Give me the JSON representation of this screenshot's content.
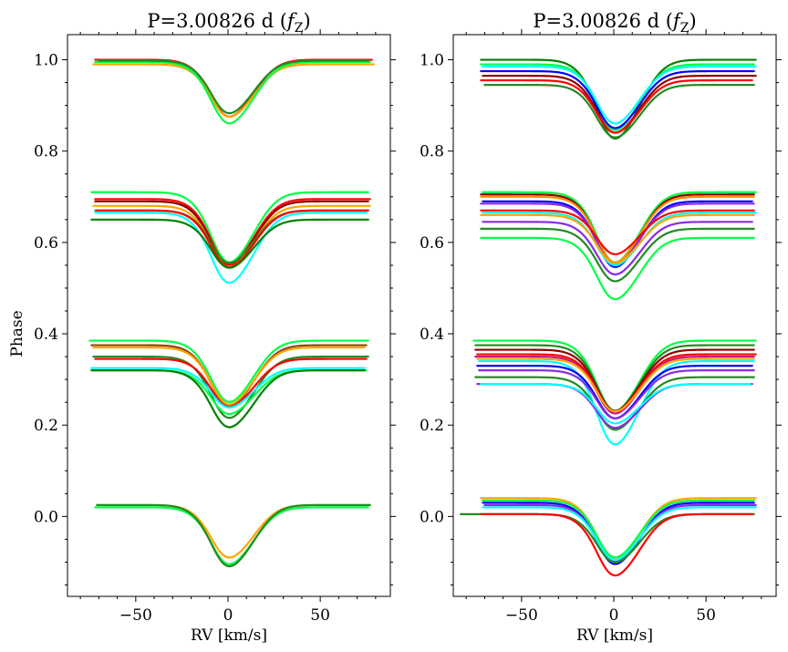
{
  "chart_data": [
    {
      "type": "line",
      "title": "P=3.00826 d (",
      "title_symbol": "f",
      "title_subscript": "Z",
      "title_close": ")",
      "xlabel": "RV [km/s]",
      "ylabel": "Phase",
      "xlim": [
        -87,
        88
      ],
      "ylim": [
        -0.175,
        1.055
      ],
      "xticks": [
        -50,
        0,
        50
      ],
      "xtick_labels": [
        "−50",
        "0",
        "50"
      ],
      "yticks": [
        0.0,
        0.2,
        0.4,
        0.6,
        0.8,
        1.0
      ],
      "ytick_labels": [
        "0.0",
        "0.2",
        "0.4",
        "0.6",
        "0.8",
        "1.0"
      ],
      "line_profile_model": {
        "center_kms": 3,
        "width_kms": 12
      },
      "series": [
        {
          "color": "#ff0000",
          "phase": 1.0,
          "depth": 0.13,
          "xmin": -72,
          "xmax": 78
        },
        {
          "color": "#ffa500",
          "phase": 0.99,
          "depth": 0.12,
          "xmin": -73,
          "xmax": 79
        },
        {
          "color": "#00ff44",
          "phase": 0.995,
          "depth": 0.14,
          "xmin": -72,
          "xmax": 77
        },
        {
          "color": "#228b22",
          "phase": 0.998,
          "depth": 0.12,
          "xmin": -70,
          "xmax": 76
        },
        {
          "color": "#00ff44",
          "phase": 0.71,
          "depth": 0.16,
          "xmin": -74,
          "xmax": 76
        },
        {
          "color": "#ff0000",
          "phase": 0.695,
          "depth": 0.15,
          "xmin": -72,
          "xmax": 77
        },
        {
          "color": "#8b0000",
          "phase": 0.69,
          "depth": 0.15,
          "xmin": -72,
          "xmax": 76
        },
        {
          "color": "#ffa500",
          "phase": 0.68,
          "depth": 0.14,
          "xmin": -73,
          "xmax": 77
        },
        {
          "color": "#228b22",
          "phase": 0.67,
          "depth": 0.12,
          "xmin": -72,
          "xmax": 76
        },
        {
          "color": "#00ffff",
          "phase": 0.665,
          "depth": 0.16,
          "xmin": -72,
          "xmax": 75
        },
        {
          "color": "#ff0000",
          "phase": 0.67,
          "depth": 0.13,
          "xmin": -71,
          "xmax": 76
        },
        {
          "color": "#008000",
          "phase": 0.65,
          "depth": 0.11,
          "xmin": -74,
          "xmax": 76
        },
        {
          "color": "#00ff44",
          "phase": 0.385,
          "depth": 0.14,
          "xmin": -75,
          "xmax": 76
        },
        {
          "color": "#8b4513",
          "phase": 0.375,
          "depth": 0.14,
          "xmin": -74,
          "xmax": 75
        },
        {
          "color": "#ffa500",
          "phase": 0.37,
          "depth": 0.13,
          "xmin": -73,
          "xmax": 74
        },
        {
          "color": "#228b22",
          "phase": 0.35,
          "depth": 0.14,
          "xmin": -73,
          "xmax": 76
        },
        {
          "color": "#ff0000",
          "phase": 0.345,
          "depth": 0.11,
          "xmin": -72,
          "xmax": 75
        },
        {
          "color": "#00ffff",
          "phase": 0.325,
          "depth": 0.09,
          "xmin": -74,
          "xmax": 74
        },
        {
          "color": "#00ff44",
          "phase": 0.32,
          "depth": 0.1,
          "xmin": -73,
          "xmax": 75
        },
        {
          "color": "#008000",
          "phase": 0.32,
          "depth": 0.13,
          "xmin": -74,
          "xmax": 74
        },
        {
          "color": "#ffa500",
          "phase": 0.025,
          "depth": 0.12,
          "xmin": -71,
          "xmax": 77
        },
        {
          "color": "#00ff44",
          "phase": 0.02,
          "depth": 0.13,
          "xmin": -72,
          "xmax": 76
        },
        {
          "color": "#228b22",
          "phase": 0.025,
          "depth": 0.14,
          "xmin": -71,
          "xmax": 77
        }
      ]
    },
    {
      "type": "line",
      "title": "P=3.00826 d (",
      "title_symbol": "f",
      "title_subscript": "Z",
      "title_close": ")",
      "xlabel": "RV [km/s]",
      "ylabel": "",
      "xlim": [
        -87,
        88
      ],
      "ylim": [
        -0.175,
        1.055
      ],
      "xticks": [
        -50,
        0,
        50
      ],
      "xtick_labels": [
        "−50",
        "0",
        "50"
      ],
      "yticks": [
        0.0,
        0.2,
        0.4,
        0.6,
        0.8,
        1.0
      ],
      "ytick_labels": [
        "0.0",
        "0.2",
        "0.4",
        "0.6",
        "0.8",
        "1.0"
      ],
      "line_profile_model": {
        "center_kms": 3,
        "width_kms": 12
      },
      "series": [
        {
          "color": "#008000",
          "phase": 1.0,
          "depth": 0.18,
          "xmin": -72,
          "xmax": 77
        },
        {
          "color": "#00ff44",
          "phase": 0.99,
          "depth": 0.15,
          "xmin": -72,
          "xmax": 76
        },
        {
          "color": "#00ffff",
          "phase": 0.985,
          "depth": 0.13,
          "xmin": -71,
          "xmax": 77
        },
        {
          "color": "#0000ff",
          "phase": 0.975,
          "depth": 0.13,
          "xmin": -72,
          "xmax": 76
        },
        {
          "color": "#8b0000",
          "phase": 0.965,
          "depth": 0.13,
          "xmin": -71,
          "xmax": 77
        },
        {
          "color": "#ff0000",
          "phase": 0.955,
          "depth": 0.12,
          "xmin": -72,
          "xmax": 75
        },
        {
          "color": "#228b22",
          "phase": 0.945,
          "depth": 0.12,
          "xmin": -70,
          "xmax": 76
        },
        {
          "color": "#00ff44",
          "phase": 0.71,
          "depth": 0.16,
          "xmin": -71,
          "xmax": 77
        },
        {
          "color": "#8b0000",
          "phase": 0.705,
          "depth": 0.16,
          "xmin": -72,
          "xmax": 76
        },
        {
          "color": "#ff8c00",
          "phase": 0.7,
          "depth": 0.15,
          "xmin": -72,
          "xmax": 76
        },
        {
          "color": "#0000ff",
          "phase": 0.69,
          "depth": 0.15,
          "xmin": -71,
          "xmax": 75
        },
        {
          "color": "#8a2be2",
          "phase": 0.685,
          "depth": 0.14,
          "xmin": -72,
          "xmax": 76
        },
        {
          "color": "#00ffff",
          "phase": 0.665,
          "depth": 0.12,
          "xmin": -71,
          "xmax": 77
        },
        {
          "color": "#ffa500",
          "phase": 0.66,
          "depth": 0.11,
          "xmin": -72,
          "xmax": 76
        },
        {
          "color": "#ff0000",
          "phase": 0.67,
          "depth": 0.1,
          "xmin": -72,
          "xmax": 76
        },
        {
          "color": "#8a2be2",
          "phase": 0.645,
          "depth": 0.12,
          "xmin": -71,
          "xmax": 75
        },
        {
          "color": "#228b22",
          "phase": 0.63,
          "depth": 0.12,
          "xmin": -72,
          "xmax": 76
        },
        {
          "color": "#00ff44",
          "phase": 0.61,
          "depth": 0.14,
          "xmin": -72,
          "xmax": 76
        },
        {
          "color": "#00ff44",
          "phase": 0.385,
          "depth": 0.16,
          "xmin": -76,
          "xmax": 77
        },
        {
          "color": "#228b22",
          "phase": 0.375,
          "depth": 0.15,
          "xmin": -75,
          "xmax": 76
        },
        {
          "color": "#8b0000",
          "phase": 0.365,
          "depth": 0.14,
          "xmin": -75,
          "xmax": 76
        },
        {
          "color": "#ff0000",
          "phase": 0.355,
          "depth": 0.13,
          "xmin": -74,
          "xmax": 77
        },
        {
          "color": "#c71585",
          "phase": 0.35,
          "depth": 0.13,
          "xmin": -75,
          "xmax": 76
        },
        {
          "color": "#ffa500",
          "phase": 0.345,
          "depth": 0.12,
          "xmin": -74,
          "xmax": 76
        },
        {
          "color": "#00ffff",
          "phase": 0.34,
          "depth": 0.19,
          "xmin": -73,
          "xmax": 76
        },
        {
          "color": "#0000ff",
          "phase": 0.33,
          "depth": 0.12,
          "xmin": -74,
          "xmax": 75
        },
        {
          "color": "#8a2be2",
          "phase": 0.32,
          "depth": 0.11,
          "xmin": -73,
          "xmax": 76
        },
        {
          "color": "#228b22",
          "phase": 0.305,
          "depth": 0.12,
          "xmin": -75,
          "xmax": 76
        },
        {
          "color": "#8a2be2",
          "phase": 0.29,
          "depth": 0.1,
          "xmin": -74,
          "xmax": 75
        },
        {
          "color": "#00ffff",
          "phase": 0.29,
          "depth": 0.09,
          "xmin": -72,
          "xmax": 74
        },
        {
          "color": "#ffa500",
          "phase": 0.04,
          "depth": 0.14,
          "xmin": -72,
          "xmax": 77
        },
        {
          "color": "#00ff44",
          "phase": 0.035,
          "depth": 0.13,
          "xmin": -71,
          "xmax": 76
        },
        {
          "color": "#0000ff",
          "phase": 0.03,
          "depth": 0.14,
          "xmin": -71,
          "xmax": 76
        },
        {
          "color": "#8a2be2",
          "phase": 0.025,
          "depth": 0.13,
          "xmin": -70,
          "xmax": 77
        },
        {
          "color": "#00ffff",
          "phase": 0.02,
          "depth": 0.12,
          "xmin": -71,
          "xmax": 77
        },
        {
          "color": "#228b22",
          "phase": 0.005,
          "depth": 0.11,
          "xmin": -83,
          "xmax": 76
        },
        {
          "color": "#ff0000",
          "phase": 0.005,
          "depth": 0.14,
          "xmin": -72,
          "xmax": 75
        }
      ]
    }
  ]
}
